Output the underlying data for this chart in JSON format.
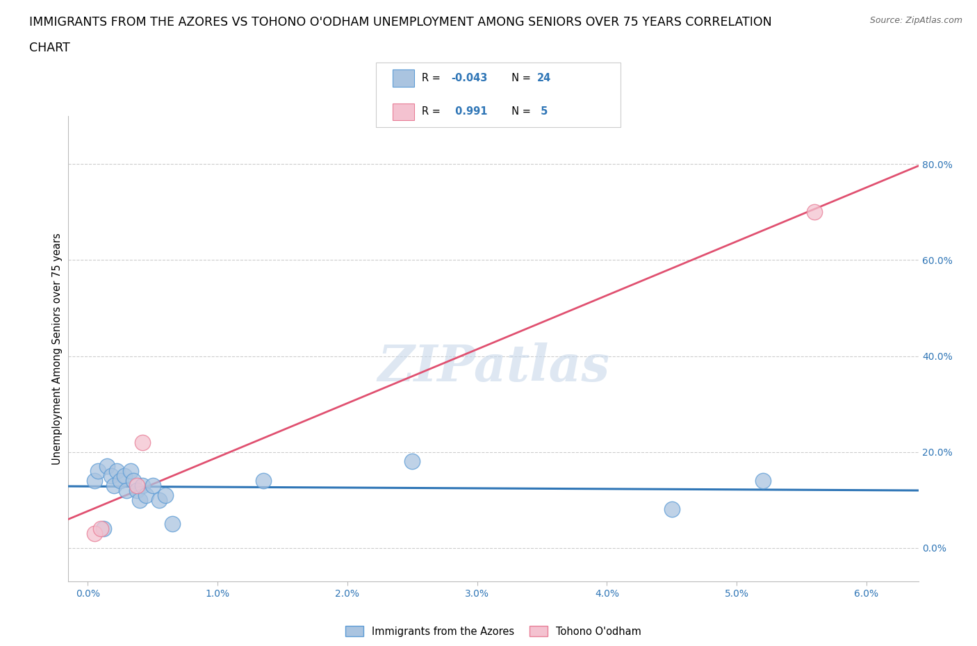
{
  "title_line1": "IMMIGRANTS FROM THE AZORES VS TOHONO O'ODHAM UNEMPLOYMENT AMONG SENIORS OVER 75 YEARS CORRELATION",
  "title_line2": "CHART",
  "source": "Source: ZipAtlas.com",
  "ylabel": "Unemployment Among Seniors over 75 years",
  "x_tick_labels": [
    "0.0%",
    "1.0%",
    "2.0%",
    "3.0%",
    "4.0%",
    "5.0%",
    "6.0%"
  ],
  "x_tick_vals": [
    0.0,
    1.0,
    2.0,
    3.0,
    4.0,
    5.0,
    6.0
  ],
  "y_tick_labels": [
    "0.0%",
    "20.0%",
    "40.0%",
    "60.0%",
    "80.0%"
  ],
  "y_tick_vals": [
    0.0,
    20.0,
    40.0,
    60.0,
    80.0
  ],
  "xlim": [
    -0.15,
    6.4
  ],
  "ylim": [
    -7.0,
    90.0
  ],
  "blue_points_x": [
    0.05,
    0.08,
    0.12,
    0.15,
    0.18,
    0.2,
    0.22,
    0.25,
    0.28,
    0.3,
    0.33,
    0.35,
    0.38,
    0.4,
    0.42,
    0.45,
    0.5,
    0.55,
    0.6,
    0.65,
    1.35,
    2.5,
    4.5,
    5.2
  ],
  "blue_points_y": [
    14.0,
    16.0,
    4.0,
    17.0,
    15.0,
    13.0,
    16.0,
    14.0,
    15.0,
    12.0,
    16.0,
    14.0,
    12.0,
    10.0,
    13.0,
    11.0,
    13.0,
    10.0,
    11.0,
    5.0,
    14.0,
    18.0,
    8.0,
    14.0
  ],
  "pink_points_x": [
    0.05,
    0.1,
    0.38,
    0.42,
    5.6
  ],
  "pink_points_y": [
    3.0,
    4.0,
    13.0,
    22.0,
    70.0
  ],
  "blue_R": -0.043,
  "blue_N": 24,
  "pink_R": 0.991,
  "pink_N": 5,
  "blue_color": "#aac4e0",
  "blue_edge_color": "#5b9bd5",
  "blue_line_color": "#2e75b6",
  "pink_color": "#f4c2d0",
  "pink_edge_color": "#e87d96",
  "pink_line_color": "#e05070",
  "watermark_text": "ZIPatlas",
  "watermark_color": "#c8d8ea",
  "legend_label_blue": "Immigrants from the Azores",
  "legend_label_pink": "Tohono O'odham",
  "grid_color": "#cccccc",
  "title_fontsize": 12.5,
  "axis_label_fontsize": 10.5,
  "tick_fontsize": 10,
  "tick_color_x": "#2e75b6",
  "tick_color_y": "#2e75b6"
}
